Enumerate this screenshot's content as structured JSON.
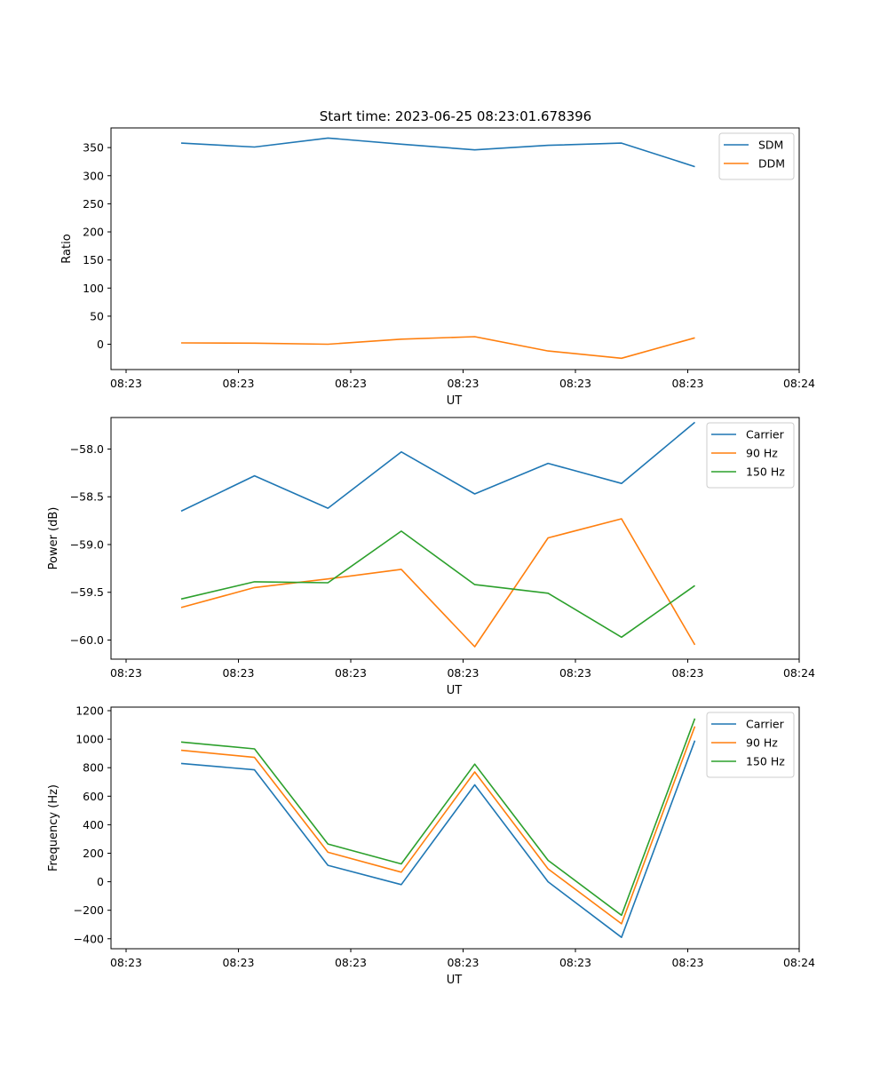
{
  "figure_title": "Start time: 2023-06-25 08:23:01.678396",
  "chart_data": [
    {
      "type": "line",
      "title": "Start time: 2023-06-25 08:23:01.678396",
      "xlabel": "UT",
      "ylabel": "Ratio",
      "x_tick_labels": [
        "08:23",
        "08:23",
        "08:23",
        "08:23",
        "08:23",
        "08:23",
        "08:24"
      ],
      "y_ticks": [
        0,
        50,
        100,
        150,
        200,
        250,
        300,
        350
      ],
      "ylim": [
        -45,
        385
      ],
      "x": [
        1,
        2,
        3,
        4,
        5,
        6,
        7,
        8
      ],
      "series": [
        {
          "name": "SDM",
          "color": "#1f77b4",
          "values": [
            358,
            351,
            367,
            356,
            346,
            354,
            358,
            316
          ]
        },
        {
          "name": "DDM",
          "color": "#ff7f0e",
          "values": [
            2.5,
            2,
            0,
            9,
            13.5,
            -12,
            -25,
            11.5
          ]
        }
      ],
      "legend": "top-right",
      "grid": false
    },
    {
      "type": "line",
      "title": "",
      "xlabel": "UT",
      "ylabel": "Power (dB)",
      "x_tick_labels": [
        "08:23",
        "08:23",
        "08:23",
        "08:23",
        "08:23",
        "08:23",
        "08:24"
      ],
      "y_ticks": [
        -60.0,
        -59.5,
        -59.0,
        -58.5,
        -58.0
      ],
      "y_tick_labels": [
        "−60.0",
        "−59.5",
        "−59.0",
        "−58.5",
        "−58.0"
      ],
      "ylim": [
        -60.2,
        -57.67
      ],
      "x": [
        1,
        2,
        3,
        4,
        5,
        6,
        7,
        8
      ],
      "series": [
        {
          "name": "Carrier",
          "color": "#1f77b4",
          "values": [
            -58.65,
            -58.28,
            -58.62,
            -58.03,
            -58.47,
            -58.15,
            -58.36,
            -57.72
          ]
        },
        {
          "name": "90 Hz",
          "color": "#ff7f0e",
          "values": [
            -59.66,
            -59.45,
            -59.36,
            -59.26,
            -60.07,
            -58.93,
            -58.73,
            -60.05
          ]
        },
        {
          "name": "150 Hz",
          "color": "#2ca02c",
          "values": [
            -59.57,
            -59.39,
            -59.4,
            -58.86,
            -59.42,
            -59.51,
            -59.97,
            -59.43
          ]
        }
      ],
      "legend": "top-right",
      "grid": false
    },
    {
      "type": "line",
      "title": "",
      "xlabel": "UT",
      "ylabel": "Frequency (Hz)",
      "x_tick_labels": [
        "08:23",
        "08:23",
        "08:23",
        "08:23",
        "08:23",
        "08:23",
        "08:24"
      ],
      "y_ticks": [
        -400,
        -200,
        0,
        200,
        400,
        600,
        800,
        1000,
        1200
      ],
      "y_tick_labels": [
        "−400",
        "−200",
        "0",
        "200",
        "400",
        "600",
        "800",
        "1000",
        "1200"
      ],
      "ylim": [
        -470,
        1225
      ],
      "x": [
        1,
        2,
        3,
        4,
        5,
        6,
        7,
        8
      ],
      "series": [
        {
          "name": "Carrier",
          "color": "#1f77b4",
          "values": [
            830,
            785,
            115,
            -20,
            680,
            0,
            -390,
            990
          ]
        },
        {
          "name": "90 Hz",
          "color": "#ff7f0e",
          "values": [
            922,
            872,
            207,
            67,
            770,
            90,
            -295,
            1090
          ]
        },
        {
          "name": "150 Hz",
          "color": "#2ca02c",
          "values": [
            980,
            932,
            265,
            125,
            825,
            150,
            -235,
            1145
          ]
        }
      ],
      "legend": "top-right",
      "grid": false
    }
  ]
}
